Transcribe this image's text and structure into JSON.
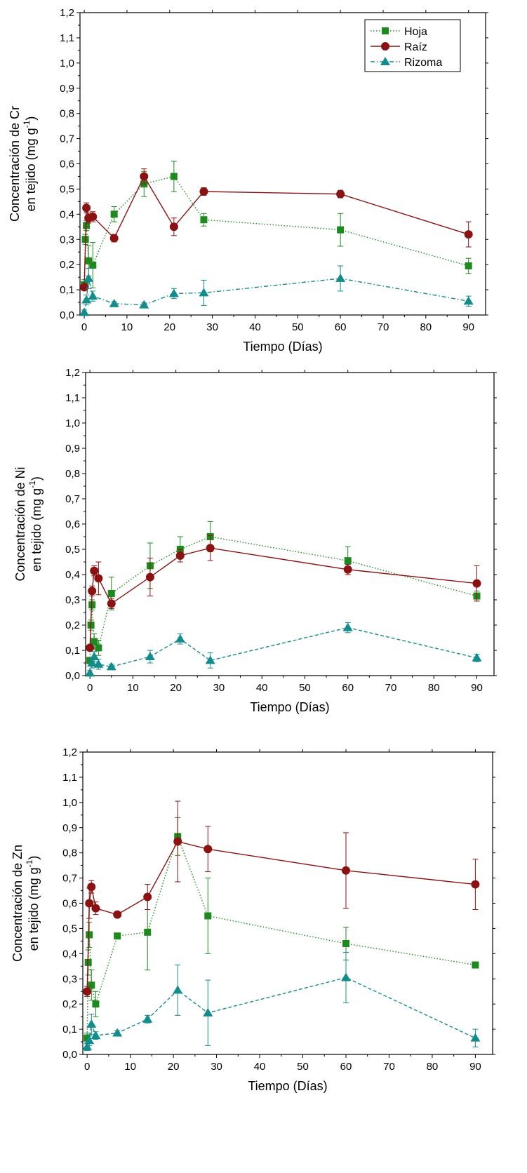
{
  "colors": {
    "hoja": "#1e8a1e",
    "raiz": "#8b1212",
    "rizoma": "#138c8c",
    "axis": "#000000"
  },
  "chart_data": [
    {
      "type": "line",
      "xlabel": "Tiempo (Días)",
      "ylabel_line1": "Concentración de Cr",
      "ylabel_line2": "en tejido (mg g",
      "ylabel_sup": "-1",
      "ylabel_end": ")",
      "xlim": [
        -1,
        94
      ],
      "ylim": [
        0,
        1.2
      ],
      "x_ticks": [
        "0",
        "10",
        "20",
        "30",
        "40",
        "50",
        "60",
        "70",
        "80",
        "90"
      ],
      "y_ticks": [
        "0,0",
        "0,1",
        "0,2",
        "0,3",
        "0,4",
        "0,5",
        "0,6",
        "0,7",
        "0,8",
        "0,9",
        "1,0",
        "1,1",
        "1,2"
      ],
      "legend": {
        "position": "top-right",
        "entries": [
          "Hoja",
          "Raíz",
          "Rizoma"
        ]
      },
      "series": [
        {
          "name": "Hoja",
          "marker": "square",
          "line": "dotted",
          "x": [
            0,
            0.25,
            0.5,
            1,
            2,
            7,
            14,
            21,
            28,
            60,
            90
          ],
          "y": [
            0.12,
            0.3,
            0.355,
            0.215,
            0.198,
            0.4,
            0.52,
            0.55,
            0.378,
            0.338,
            0.195
          ],
          "err": [
            0.02,
            0.02,
            0.02,
            0.06,
            0.09,
            0.03,
            0.05,
            0.06,
            0.025,
            0.065,
            0.03
          ]
        },
        {
          "name": "Raíz",
          "marker": "circle",
          "line": "solid",
          "x": [
            0,
            0.5,
            1,
            2,
            7,
            14,
            21,
            28,
            60,
            90
          ],
          "y": [
            0.11,
            0.425,
            0.385,
            0.39,
            0.305,
            0.55,
            0.35,
            0.49,
            0.48,
            0.32
          ],
          "err": [
            0.01,
            0.02,
            0.02,
            0.02,
            0.015,
            0.03,
            0.035,
            0.015,
            0.015,
            0.05
          ]
        },
        {
          "name": "Rizoma",
          "marker": "triangle",
          "line": "dashdot",
          "x": [
            0,
            0.5,
            1,
            2,
            7,
            14,
            21,
            28,
            60,
            90
          ],
          "y": [
            0.01,
            0.06,
            0.145,
            0.075,
            0.045,
            0.04,
            0.085,
            0.088,
            0.145,
            0.055
          ],
          "err": [
            0.01,
            0.02,
            0.04,
            0.02,
            0.008,
            0.008,
            0.02,
            0.05,
            0.05,
            0.02
          ]
        }
      ]
    },
    {
      "type": "line",
      "xlabel": "Tiempo (Días)",
      "ylabel_line1": "Concentración de Ni",
      "ylabel_line2": "en tejido (mg g",
      "ylabel_sup": "-1",
      "ylabel_end": ")",
      "xlim": [
        -1,
        94
      ],
      "ylim": [
        0,
        1.2
      ],
      "x_ticks": [
        "0",
        "10",
        "20",
        "30",
        "40",
        "50",
        "60",
        "70",
        "80",
        "90"
      ],
      "y_ticks": [
        "0,0",
        "0,1",
        "0,2",
        "0,3",
        "0,4",
        "0,5",
        "0,6",
        "0,7",
        "0,8",
        "0,9",
        "1,0",
        "1,1",
        "1,2"
      ],
      "series": [
        {
          "name": "Hoja",
          "marker": "square",
          "line": "dotted",
          "x": [
            0,
            0.25,
            0.5,
            1,
            2,
            5,
            14,
            21,
            28,
            60,
            90
          ],
          "y": [
            0.06,
            0.2,
            0.28,
            0.135,
            0.11,
            0.325,
            0.435,
            0.5,
            0.55,
            0.455,
            0.315
          ],
          "err": [
            0.01,
            0.02,
            0.02,
            0.03,
            0.03,
            0.065,
            0.09,
            0.05,
            0.06,
            0.055,
            0.02
          ]
        },
        {
          "name": "Raíz",
          "marker": "circle",
          "line": "solid",
          "x": [
            0,
            0.5,
            1,
            2,
            5,
            14,
            21,
            28,
            60,
            90
          ],
          "y": [
            0.11,
            0.335,
            0.415,
            0.385,
            0.285,
            0.39,
            0.475,
            0.505,
            0.42,
            0.365
          ],
          "err": [
            0.01,
            0.02,
            0.02,
            0.065,
            0.02,
            0.075,
            0.025,
            0.05,
            0.02,
            0.07
          ]
        },
        {
          "name": "Rizoma",
          "marker": "triangle",
          "line": "dashed",
          "x": [
            0,
            0.5,
            1,
            2,
            5,
            14,
            21,
            28,
            60,
            90
          ],
          "y": [
            0.01,
            0.05,
            0.075,
            0.045,
            0.035,
            0.075,
            0.145,
            0.06,
            0.19,
            0.07
          ],
          "err": [
            0.01,
            0.02,
            0.02,
            0.02,
            0.01,
            0.025,
            0.02,
            0.03,
            0.02,
            0.015
          ]
        }
      ]
    },
    {
      "type": "line",
      "xlabel": "Tiempo (Días)",
      "ylabel_line1": "Concentración de Zn",
      "ylabel_line2": "en tejido (mg g",
      "ylabel_sup": "-1",
      "ylabel_end": ")",
      "xlim": [
        -1,
        94
      ],
      "ylim": [
        0,
        1.2
      ],
      "x_ticks": [
        "0",
        "10",
        "20",
        "30",
        "40",
        "50",
        "60",
        "70",
        "80",
        "90"
      ],
      "y_ticks": [
        "0,0",
        "0,1",
        "0,2",
        "0,3",
        "0,4",
        "0,5",
        "0,6",
        "0,7",
        "0,8",
        "0,9",
        "1,0",
        "1,1",
        "1,2"
      ],
      "series": [
        {
          "name": "Hoja",
          "marker": "square",
          "line": "dotted",
          "x": [
            0,
            0.25,
            0.5,
            1,
            2,
            7,
            14,
            21,
            28,
            60,
            90
          ],
          "y": [
            0.065,
            0.365,
            0.475,
            0.275,
            0.2,
            0.47,
            0.485,
            0.865,
            0.55,
            0.44,
            0.355
          ],
          "err": [
            0.02,
            0.05,
            0.05,
            0.06,
            0.05,
            0.01,
            0.15,
            0.075,
            0.15,
            0.065,
            0.01
          ]
        },
        {
          "name": "Raíz",
          "marker": "circle",
          "line": "solid",
          "x": [
            0,
            0.5,
            1,
            2,
            7,
            14,
            21,
            28,
            60,
            90
          ],
          "y": [
            0.25,
            0.6,
            0.665,
            0.58,
            0.555,
            0.625,
            0.845,
            0.815,
            0.73,
            0.675
          ],
          "err": [
            0.02,
            0.06,
            0.025,
            0.025,
            0.01,
            0.05,
            0.16,
            0.09,
            0.15,
            0.1
          ]
        },
        {
          "name": "Rizoma",
          "marker": "triangle",
          "line": "dashed",
          "x": [
            0,
            0.5,
            1,
            2,
            7,
            14,
            21,
            28,
            60,
            90
          ],
          "y": [
            0.03,
            0.055,
            0.12,
            0.075,
            0.085,
            0.14,
            0.255,
            0.165,
            0.305,
            0.065
          ],
          "err": [
            0.015,
            0.02,
            0.04,
            0.015,
            0.01,
            0.015,
            0.1,
            0.13,
            0.1,
            0.035
          ]
        }
      ]
    }
  ]
}
